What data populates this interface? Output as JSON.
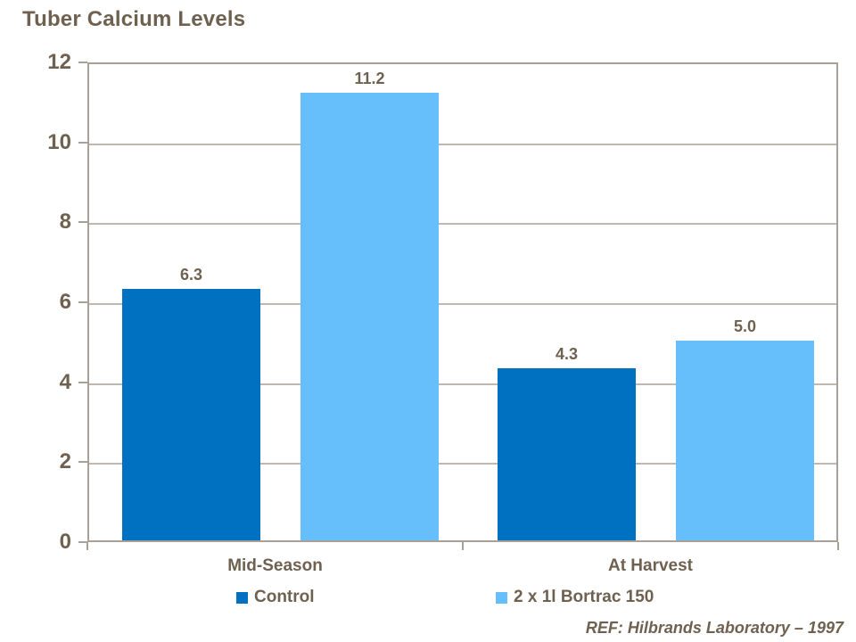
{
  "title": "Tuber Calcium Levels",
  "reference": "REF: Hilbrands Laboratory – 1997",
  "colors": {
    "text_brown": "#6F6150",
    "control_blue": "#0070C0",
    "bortrac_blue": "#66BEFA",
    "gridline": "#C0B8AF",
    "axis_border": "#A9A198"
  },
  "chart_data": {
    "type": "bar",
    "title": "Tuber Calcium Levels",
    "categories": [
      "Mid-Season",
      "At Harvest"
    ],
    "series": [
      {
        "name": "Control",
        "color": "#0070C0",
        "values": [
          6.3,
          4.3
        ]
      },
      {
        "name": "2 x 1l Bortrac 150",
        "color": "#66BEFA",
        "values": [
          11.2,
          5.0
        ]
      }
    ],
    "data_labels": [
      [
        "6.3",
        "4.3"
      ],
      [
        "11.2",
        "5.0"
      ]
    ],
    "ylabel": "",
    "xlabel": "",
    "ylim": [
      0,
      12
    ],
    "yticks": [
      0,
      2,
      4,
      6,
      8,
      10,
      12
    ],
    "grid": true,
    "legend_position": "bottom",
    "annotation": "REF: Hilbrands Laboratory – 1997"
  }
}
